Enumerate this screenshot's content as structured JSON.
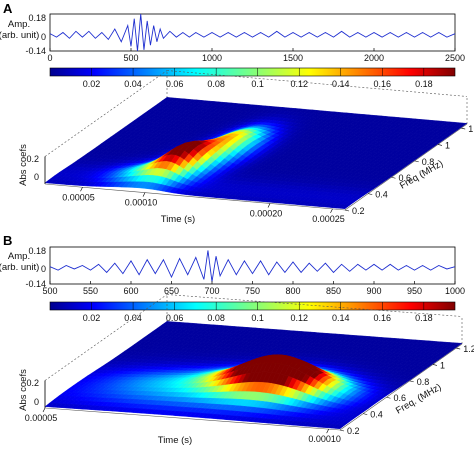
{
  "chart_data": [
    {
      "panel": "A",
      "type": "line",
      "ylabel": [
        "Amp.",
        "(arb. unit)"
      ],
      "xlim": [
        0,
        2500
      ],
      "x_ticks": [
        "0",
        "500",
        "1000",
        "1500",
        "2000",
        "2500"
      ],
      "ylim": [
        -0.14,
        0.18
      ],
      "y_ticks": [
        "0.18",
        "0",
        "-0.14"
      ],
      "series": [
        {
          "color": "#1f2fd0",
          "x": [
            0,
            40,
            80,
            120,
            160,
            200,
            240,
            280,
            320,
            360,
            400,
            440,
            480,
            500,
            520,
            540,
            560,
            580,
            600,
            620,
            640,
            660,
            680,
            700,
            740,
            780,
            820,
            860,
            900,
            950,
            1000,
            1050,
            1100,
            1150,
            1200,
            1250,
            1300,
            1350,
            1400,
            1450,
            1500,
            1550,
            1600,
            1650,
            1700,
            1750,
            1800,
            1850,
            1900,
            1950,
            2000,
            2050,
            2100,
            2150,
            2200,
            2250,
            2300,
            2350,
            2400,
            2450,
            2500
          ],
          "y": [
            0.01,
            -0.02,
            0.02,
            -0.03,
            0.03,
            -0.02,
            0.03,
            -0.03,
            0.02,
            -0.04,
            0.05,
            -0.06,
            0.08,
            -0.1,
            0.14,
            -0.14,
            0.18,
            -0.13,
            0.12,
            -0.09,
            0.08,
            -0.06,
            0.05,
            -0.03,
            0.03,
            -0.02,
            0.02,
            -0.02,
            0.02,
            -0.02,
            0.02,
            -0.02,
            0.02,
            -0.02,
            0.02,
            -0.02,
            0.02,
            -0.02,
            0.03,
            -0.02,
            0.02,
            -0.02,
            0.02,
            -0.02,
            0.02,
            -0.02,
            0.03,
            -0.02,
            0.02,
            -0.02,
            0.02,
            -0.02,
            0.02,
            -0.02,
            0.02,
            -0.02,
            0.02,
            -0.02,
            0.02,
            -0.02,
            0.01
          ]
        }
      ],
      "colorbar": {
        "ticks": [
          "0.02",
          "0.04",
          "0.06",
          "0.08",
          "0.1",
          "0.12",
          "0.14",
          "0.16",
          "0.18"
        ],
        "range": [
          0,
          0.195
        ],
        "colormap": "jet"
      },
      "surface": {
        "type": "surface",
        "zlabel": "Abs coefs",
        "z_ticks": [
          "0.2",
          "0"
        ],
        "x_label": "Time (s)",
        "x_ticks": [
          "0.00005",
          "0.00010",
          "0.00020",
          "0.00025"
        ],
        "y_label": "Freq (MHz)",
        "y_ticks": [
          "0.2",
          "0.4",
          "0.6",
          "0.8",
          "1",
          "1.2"
        ],
        "peaks": [
          {
            "t": 0.000105,
            "f": 0.5,
            "amp": 0.19,
            "t_width": 1.2e-05,
            "f_width": 0.12
          },
          {
            "t": 0.00012,
            "f": 0.75,
            "amp": 0.12,
            "t_width": 1.2e-05,
            "f_width": 0.15
          },
          {
            "t": 9e-05,
            "f": 0.35,
            "amp": 0.07,
            "t_width": 2e-05,
            "f_width": 0.1
          }
        ]
      }
    },
    {
      "panel": "B",
      "type": "line",
      "ylabel": [
        "Amp.",
        "(arb. unit)"
      ],
      "xlim": [
        500,
        1000
      ],
      "x_ticks": [
        "500",
        "550",
        "600",
        "650",
        "700",
        "750",
        "800",
        "850",
        "900",
        "950",
        "1000"
      ],
      "ylim": [
        -0.14,
        0.18
      ],
      "y_ticks": [
        "0.18",
        "0",
        "-0.14"
      ],
      "series": [
        {
          "color": "#1f2fd0",
          "x": [
            500,
            510,
            520,
            530,
            540,
            550,
            560,
            570,
            580,
            590,
            600,
            610,
            620,
            630,
            640,
            650,
            660,
            670,
            680,
            690,
            695,
            700,
            705,
            710,
            720,
            730,
            740,
            750,
            760,
            770,
            780,
            790,
            800,
            810,
            820,
            830,
            840,
            850,
            860,
            870,
            880,
            890,
            900,
            910,
            920,
            930,
            940,
            950,
            960,
            970,
            980,
            990,
            1000
          ],
          "y": [
            0.01,
            -0.02,
            0.02,
            -0.01,
            0.02,
            -0.02,
            0.03,
            -0.04,
            0.04,
            -0.05,
            0.06,
            -0.06,
            0.07,
            -0.05,
            0.07,
            -0.08,
            0.08,
            -0.06,
            0.09,
            -0.1,
            0.15,
            -0.12,
            0.1,
            -0.07,
            0.07,
            -0.06,
            0.06,
            -0.05,
            0.06,
            -0.06,
            0.05,
            -0.04,
            0.05,
            -0.04,
            0.04,
            -0.03,
            0.04,
            -0.04,
            0.03,
            -0.03,
            0.03,
            -0.02,
            0.03,
            -0.02,
            0.03,
            -0.02,
            0.02,
            -0.02,
            0.02,
            -0.02,
            0.02,
            -0.01,
            0.01
          ]
        }
      ],
      "colorbar": {
        "ticks": [
          "0.02",
          "0.04",
          "0.06",
          "0.08",
          "0.1",
          "0.12",
          "0.14",
          "0.16",
          "0.18"
        ],
        "range": [
          0,
          0.195
        ],
        "colormap": "jet"
      },
      "surface": {
        "type": "surface",
        "zlabel": "Abs coefs",
        "z_ticks": [
          "0.2",
          "0"
        ],
        "x_label": "Time (s)",
        "x_ticks": [
          "0.00005",
          "0.00010"
        ],
        "y_label": "Freq. (MHz)",
        "y_ticks": [
          "0.2",
          "0.4",
          "0.6",
          "0.8",
          "1",
          "1.2"
        ],
        "peaks": [
          {
            "t": 8.15e-05,
            "f": 0.6,
            "amp": 0.18,
            "t_width": 6e-06,
            "f_width": 0.12
          },
          {
            "t": 8.7e-05,
            "f": 0.55,
            "amp": 0.15,
            "t_width": 6e-06,
            "f_width": 0.1
          },
          {
            "t": 7e-05,
            "f": 0.5,
            "amp": 0.06,
            "t_width": 1.2e-05,
            "f_width": 0.15
          }
        ]
      }
    }
  ],
  "panels": {
    "A": {
      "letter": "A"
    },
    "B": {
      "letter": "B"
    }
  }
}
